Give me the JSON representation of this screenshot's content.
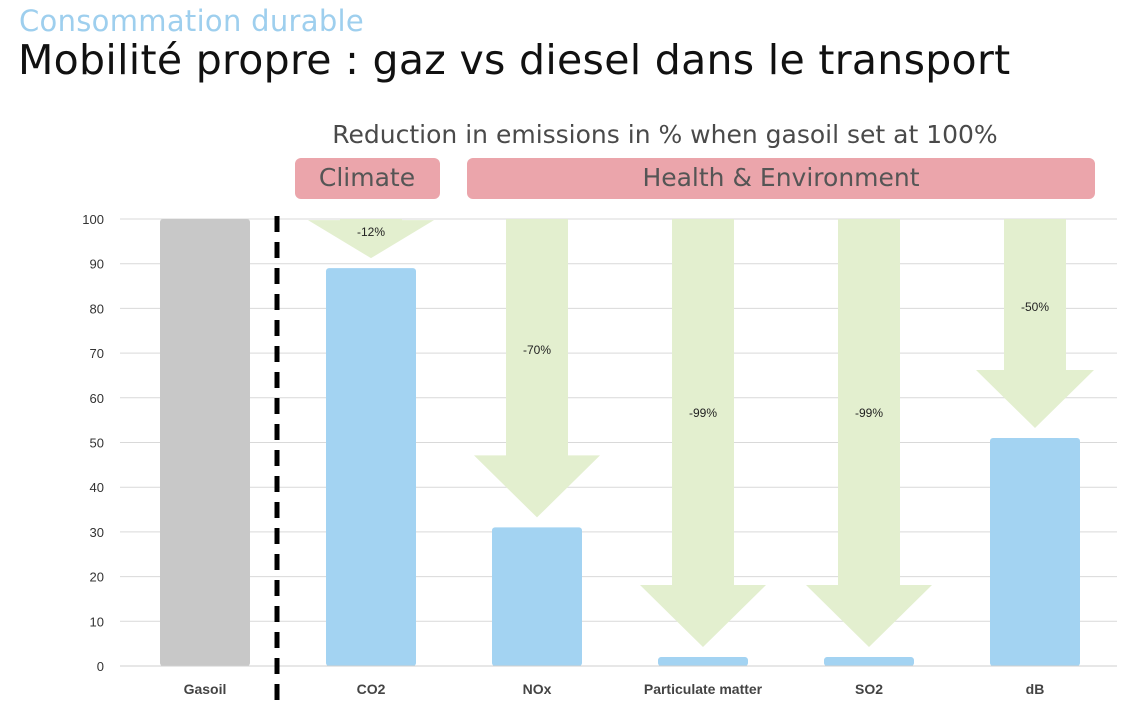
{
  "header": {
    "kicker": "Consommation durable",
    "title": "Mobilité propre : gaz vs diesel dans le transport"
  },
  "chart_data": {
    "type": "bar",
    "title": "Reduction in emissions in % when gasoil set at 100%",
    "categories": [
      "Gasoil",
      "CO2",
      "NOx",
      "Particulate matter",
      "SO2",
      "dB"
    ],
    "values": [
      100,
      89,
      31,
      2,
      2,
      51
    ],
    "reductions": [
      "",
      "-12%",
      "-70%",
      "-99%",
      "-99%",
      "-50%"
    ],
    "groups": [
      {
        "label": "Climate",
        "categories": [
          "CO2"
        ]
      },
      {
        "label": "Health & Environment",
        "categories": [
          "NOx",
          "Particulate matter",
          "SO2",
          "dB"
        ]
      }
    ],
    "ylim": [
      0,
      100
    ],
    "yticks": [
      0,
      10,
      20,
      30,
      40,
      50,
      60,
      70,
      80,
      90,
      100
    ],
    "xlabel": "",
    "ylabel": "",
    "grid": true,
    "colors": {
      "baseline_bar": "#c8c8c8",
      "bar": "#a3d3f2",
      "arrow": "#e3efcf",
      "group_label_bg": "#eba5ab",
      "grid": "#d9d9d9",
      "separator": "#000000"
    }
  }
}
